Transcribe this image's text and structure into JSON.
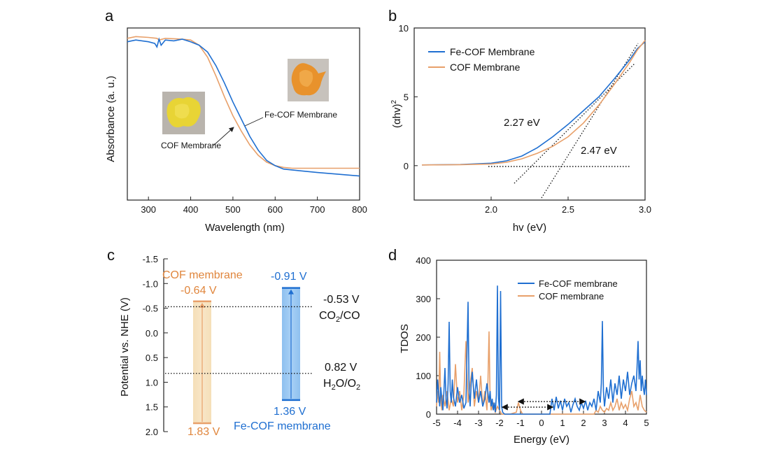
{
  "colors": {
    "fe_cof": "#1f6fd1",
    "cof": "#e8a06a",
    "cof_text": "#e0863d"
  },
  "chart_data": [
    {
      "panel": "a",
      "type": "line",
      "xlabel": "Wavelength (nm)",
      "ylabel": "Absorbance (a. u.)",
      "xlim": [
        250,
        800
      ],
      "ylim": [
        0,
        1
      ],
      "xticks": [
        "300",
        "400",
        "500",
        "600",
        "700",
        "800"
      ],
      "series": [
        {
          "name": "COF Membrane",
          "color": "#e8a06a",
          "x": [
            250,
            270,
            300,
            320,
            325,
            340,
            380,
            400,
            420,
            440,
            460,
            480,
            500,
            520,
            540,
            560,
            580,
            600,
            620,
            640,
            660,
            700,
            750,
            800
          ],
          "y": [
            0.94,
            0.95,
            0.945,
            0.94,
            0.93,
            0.94,
            0.935,
            0.93,
            0.9,
            0.83,
            0.72,
            0.6,
            0.49,
            0.4,
            0.32,
            0.26,
            0.22,
            0.2,
            0.19,
            0.185,
            0.185,
            0.185,
            0.185,
            0.185
          ]
        },
        {
          "name": "Fe-COF Membrane",
          "color": "#1f6fd1",
          "x": [
            250,
            270,
            300,
            315,
            320,
            325,
            330,
            340,
            360,
            380,
            400,
            420,
            440,
            460,
            480,
            500,
            520,
            540,
            560,
            580,
            600,
            620,
            640,
            660,
            700,
            750,
            800
          ],
          "y": [
            0.92,
            0.93,
            0.92,
            0.91,
            0.89,
            0.935,
            0.9,
            0.93,
            0.925,
            0.935,
            0.92,
            0.9,
            0.86,
            0.78,
            0.68,
            0.57,
            0.47,
            0.37,
            0.29,
            0.23,
            0.2,
            0.18,
            0.175,
            0.17,
            0.16,
            0.15,
            0.14
          ]
        }
      ],
      "annotations": [
        "COF Membrane",
        "Fe-COF Membrane"
      ]
    },
    {
      "panel": "b",
      "type": "line",
      "xlabel": "hv (eV)",
      "ylim": [
        -2.5,
        10
      ],
      "xlim": [
        1.5,
        3.0
      ],
      "xticks": [
        "2.0",
        "2.5",
        "3.0"
      ],
      "yticks": [
        "0",
        "5",
        "10"
      ],
      "series": [
        {
          "name": "Fe-COF Membrane",
          "color": "#1f6fd1",
          "x": [
            1.55,
            1.8,
            2.0,
            2.1,
            2.2,
            2.3,
            2.4,
            2.5,
            2.6,
            2.7,
            2.8,
            2.9,
            2.95,
            3.0
          ],
          "y": [
            0.05,
            0.08,
            0.18,
            0.35,
            0.7,
            1.3,
            2.1,
            3.0,
            4.0,
            5.0,
            6.3,
            7.7,
            8.5,
            9.0
          ]
        },
        {
          "name": "COF Membrane",
          "color": "#e8a06a",
          "x": [
            1.55,
            1.8,
            2.0,
            2.1,
            2.2,
            2.3,
            2.4,
            2.5,
            2.6,
            2.7,
            2.8,
            2.9,
            2.95,
            3.0
          ],
          "y": [
            0.05,
            0.07,
            0.12,
            0.25,
            0.5,
            0.9,
            1.4,
            2.1,
            3.1,
            4.4,
            5.9,
            7.5,
            8.4,
            9.1
          ]
        }
      ],
      "annotations": [
        "2.27 eV",
        "2.47 eV"
      ]
    },
    {
      "panel": "c",
      "type": "bar",
      "ylabel": "Potential vs. NHE (V)",
      "ylim": [
        -1.5,
        2.0
      ],
      "yticks": [
        "-1.5",
        "-1.0",
        "-0.5",
        "0.0",
        "0.5",
        "1.0",
        "1.5",
        "2.0"
      ],
      "series": [
        {
          "name": "COF membrane",
          "top": -0.64,
          "bottom": 1.83,
          "top_label": "-0.64 V",
          "bottom_label": "1.83 V",
          "color": "#e8a06a"
        },
        {
          "name": "Fe-COF membrane",
          "top": -0.91,
          "bottom": 1.36,
          "top_label": "-0.91 V",
          "bottom_label": "1.36 V",
          "color": "#1f6fd1"
        }
      ],
      "references": [
        {
          "value": -0.53,
          "label": "-0.53 V"
        },
        {
          "value": 0.82,
          "label": "0.82 V"
        }
      ]
    },
    {
      "panel": "d",
      "type": "line",
      "xlabel": "Energy (eV)",
      "ylabel": "TDOS",
      "xlim": [
        -5,
        5
      ],
      "ylim": [
        0,
        400
      ],
      "xticks": [
        "-5",
        "-4",
        "-3",
        "-2",
        "-1",
        "0",
        "1",
        "2",
        "3",
        "4",
        "5"
      ],
      "yticks": [
        "0",
        "100",
        "200",
        "300",
        "400"
      ],
      "series": [
        {
          "name": "Fe-COF membrane",
          "color": "#1f6fd1",
          "x": [
            -5.0,
            -4.95,
            -4.9,
            -4.85,
            -4.8,
            -4.75,
            -4.7,
            -4.65,
            -4.6,
            -4.55,
            -4.5,
            -4.45,
            -4.4,
            -4.35,
            -4.3,
            -4.25,
            -4.2,
            -4.1,
            -4.0,
            -3.9,
            -3.8,
            -3.7,
            -3.6,
            -3.5,
            -3.45,
            -3.4,
            -3.35,
            -3.3,
            -3.2,
            -3.1,
            -3.0,
            -2.9,
            -2.8,
            -2.7,
            -2.6,
            -2.5,
            -2.45,
            -2.4,
            -2.35,
            -2.3,
            -2.25,
            -2.2,
            -2.15,
            -2.1,
            -2.05,
            -2.0,
            -1.95,
            -1.9,
            -1.85,
            -1.8,
            -1.75,
            -1.7,
            -1.0,
            0.0,
            0.4,
            0.5,
            0.6,
            0.7,
            0.8,
            0.9,
            1.0,
            1.1,
            1.2,
            1.3,
            1.4,
            1.5,
            1.6,
            1.7,
            1.8,
            1.9,
            2.0,
            2.1,
            2.2,
            2.3,
            2.4,
            2.5,
            2.6,
            2.7,
            2.8,
            2.85,
            2.9,
            2.95,
            3.0,
            3.1,
            3.2,
            3.3,
            3.4,
            3.5,
            3.6,
            3.7,
            3.8,
            3.9,
            4.0,
            4.1,
            4.2,
            4.3,
            4.4,
            4.5,
            4.55,
            4.6,
            4.65,
            4.7,
            4.75,
            4.8,
            4.85,
            4.9,
            4.95,
            5.0
          ],
          "y": [
            30,
            90,
            55,
            20,
            70,
            40,
            10,
            60,
            120,
            40,
            15,
            80,
            240,
            60,
            30,
            90,
            45,
            20,
            70,
            30,
            50,
            15,
            30,
            292,
            60,
            20,
            80,
            110,
            40,
            90,
            30,
            60,
            20,
            40,
            80,
            30,
            60,
            20,
            40,
            10,
            30,
            5,
            50,
            334,
            40,
            10,
            320,
            20,
            5,
            2,
            0,
            0,
            0,
            0,
            0,
            40,
            10,
            45,
            15,
            35,
            10,
            40,
            20,
            30,
            5,
            25,
            40,
            20,
            10,
            30,
            15,
            35,
            10,
            30,
            20,
            40,
            10,
            60,
            30,
            80,
            242,
            60,
            20,
            70,
            40,
            90,
            30,
            80,
            50,
            100,
            40,
            90,
            60,
            110,
            50,
            80,
            100,
            60,
            120,
            190,
            90,
            140,
            60,
            100,
            70,
            50,
            90,
            50
          ]
        },
        {
          "name": "COF membrane",
          "color": "#e8a06a",
          "x": [
            -5.0,
            -4.95,
            -4.9,
            -4.85,
            -4.8,
            -4.75,
            -4.7,
            -4.6,
            -4.5,
            -4.4,
            -4.3,
            -4.2,
            -4.1,
            -4.0,
            -3.9,
            -3.8,
            -3.7,
            -3.6,
            -3.5,
            -3.4,
            -3.3,
            -3.2,
            -3.1,
            -3.0,
            -2.9,
            -2.8,
            -2.7,
            -2.6,
            -2.55,
            -2.5,
            -2.45,
            -2.4,
            -2.3,
            -2.2,
            -2.1,
            -2.0,
            -1.9,
            -1.5,
            -1.2,
            -1.1,
            -1.0,
            -0.9,
            0.0,
            2.5,
            2.6,
            2.7,
            2.8,
            2.9,
            3.0,
            3.1,
            3.2,
            3.3,
            3.4,
            3.5,
            3.6,
            3.7,
            3.8,
            3.9,
            4.0,
            4.1,
            4.2,
            4.3,
            4.4,
            4.5,
            4.6,
            4.7,
            4.8,
            4.9,
            5.0
          ],
          "y": [
            20,
            60,
            30,
            162,
            40,
            10,
            50,
            20,
            60,
            10,
            40,
            20,
            130,
            30,
            60,
            10,
            50,
            190,
            30,
            80,
            120,
            20,
            60,
            30,
            100,
            20,
            60,
            10,
            90,
            215,
            40,
            10,
            30,
            5,
            20,
            10,
            0,
            0,
            5,
            30,
            10,
            0,
            0,
            0,
            10,
            5,
            20,
            10,
            5,
            15,
            10,
            30,
            10,
            20,
            40,
            10,
            30,
            15,
            25,
            10,
            40,
            60,
            20,
            30,
            10,
            50,
            20,
            10,
            5
          ]
        }
      ]
    }
  ],
  "labels": {
    "panel_a": "a",
    "panel_b": "b",
    "panel_c": "c",
    "panel_d": "d",
    "a_cof": "COF Membrane",
    "a_fecof": "Fe-COF Membrane",
    "b_ylab_main": "(αhv)",
    "b_ylab_sup": "2",
    "b_leg_fe": "Fe-COF Membrane",
    "b_leg_cof": "COF Membrane",
    "b_ann1": "2.27 eV",
    "b_ann2": "2.47 eV",
    "c_cof_name": "COF membrane",
    "c_fe_name": "Fe-COF membrane",
    "c_cof_top": "-0.64 V",
    "c_fe_top": "-0.91 V",
    "c_cof_bot": "1.83 V",
    "c_fe_bot": "1.36 V",
    "c_ref1": "-0.53 V",
    "c_ref1_species_a": "CO",
    "c_ref1_species_sub": "2",
    "c_ref1_species_b": "/CO",
    "c_ref2": "0.82 V",
    "c_ref2_species_a": "H",
    "c_ref2_species_sub1": "2",
    "c_ref2_species_b": "O/O",
    "c_ref2_species_sub2": "2",
    "d_leg_fe": "Fe-COF membrane",
    "d_leg_cof": "COF membrane"
  }
}
